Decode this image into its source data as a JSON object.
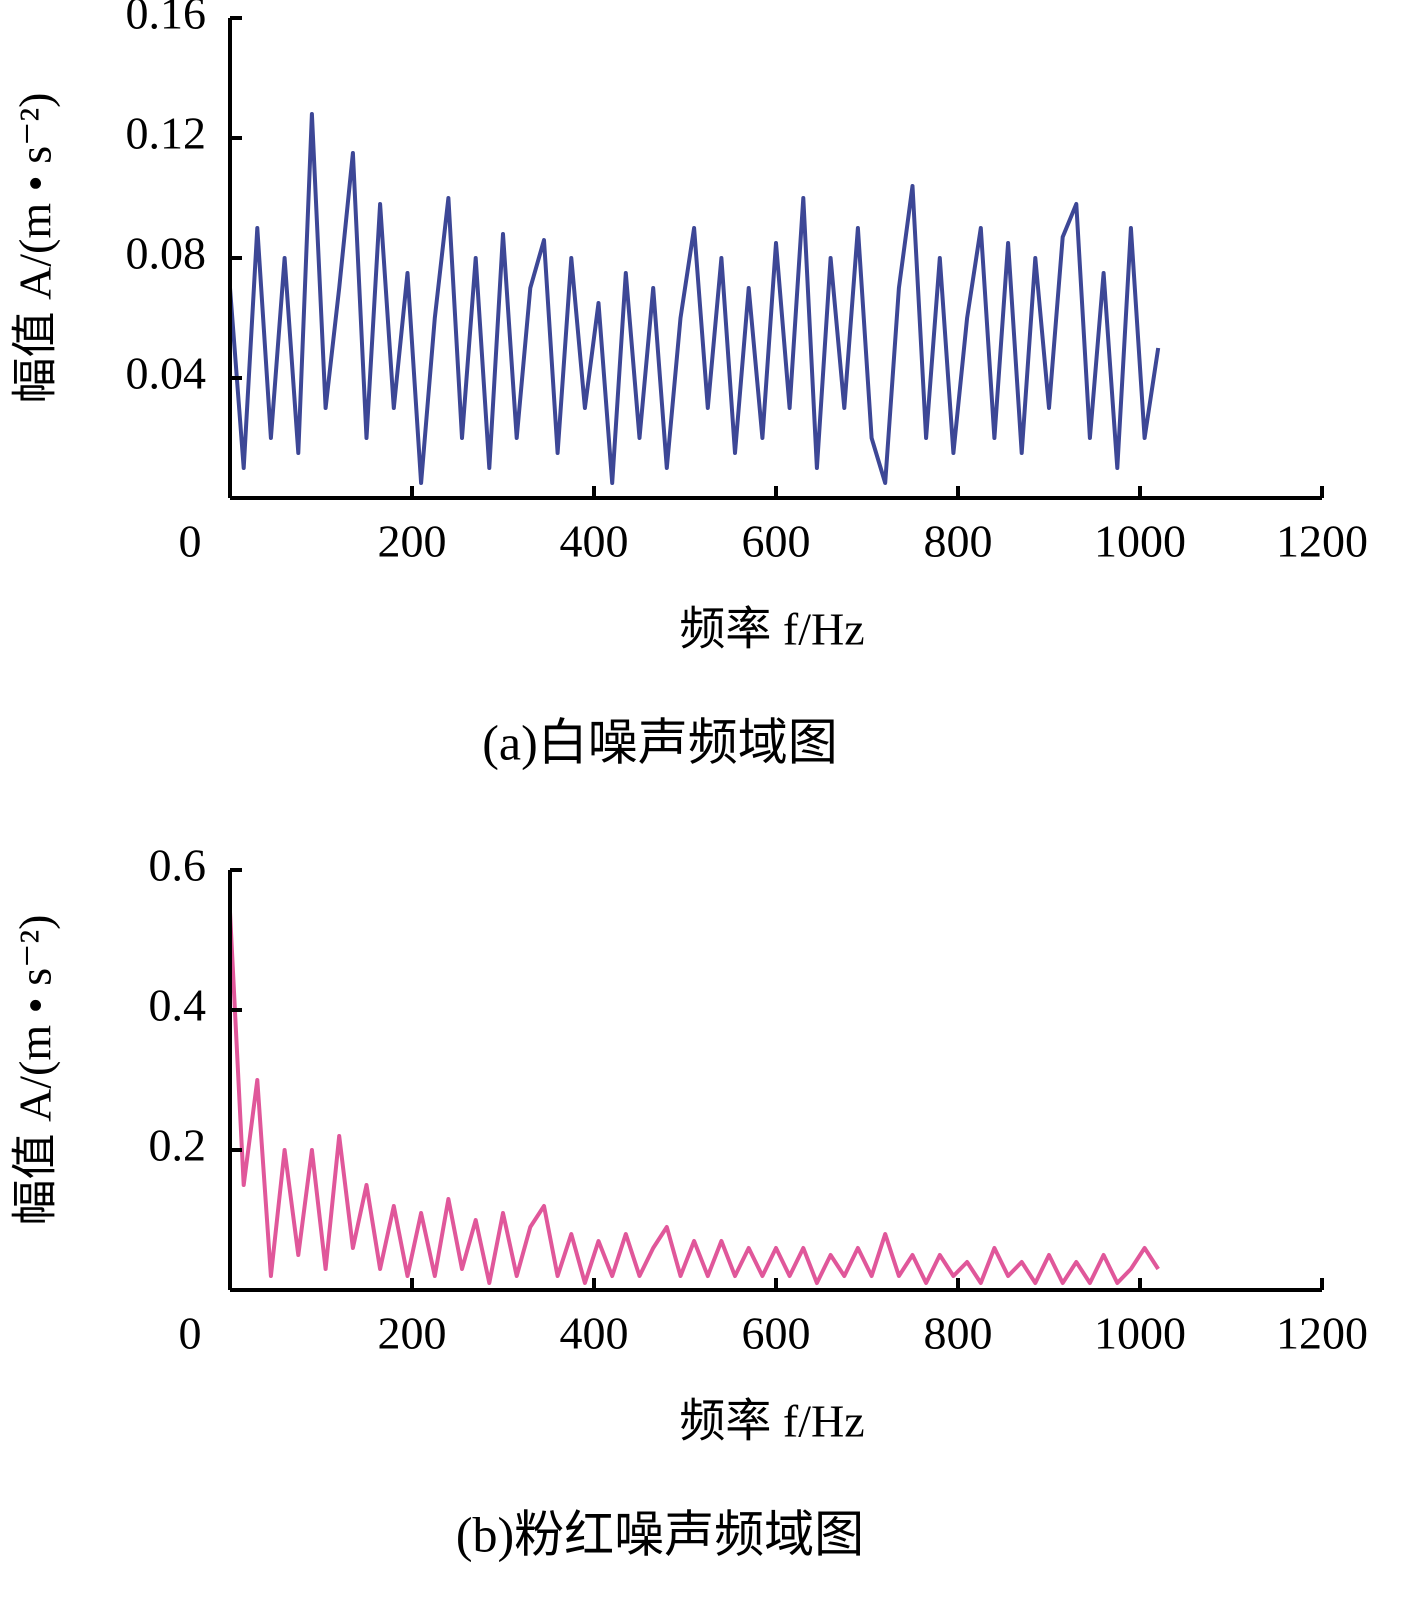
{
  "chart_data": [
    {
      "type": "line",
      "caption": "(a)白噪声频域图",
      "xlabel": "频率 f/Hz",
      "ylabel": "幅值 A/(m • s⁻²)",
      "xlim": [
        0,
        1200
      ],
      "xticks": [
        0,
        200,
        400,
        600,
        800,
        1000,
        1200
      ],
      "ylim": [
        0,
        0.16
      ],
      "yticks": [
        0.04,
        0.08,
        0.12,
        0.16
      ],
      "x": [
        0,
        15,
        30,
        45,
        60,
        75,
        90,
        105,
        120,
        135,
        150,
        165,
        180,
        195,
        210,
        225,
        240,
        255,
        270,
        285,
        300,
        315,
        330,
        345,
        360,
        375,
        390,
        405,
        420,
        435,
        450,
        465,
        480,
        495,
        510,
        525,
        540,
        555,
        570,
        585,
        600,
        615,
        630,
        645,
        660,
        675,
        690,
        705,
        720,
        735,
        750,
        765,
        780,
        795,
        810,
        825,
        840,
        855,
        870,
        885,
        900,
        915,
        930,
        945,
        960,
        975,
        990,
        1005,
        1020
      ],
      "series": [
        {
          "name": "白噪声",
          "color": "#3d4796",
          "values": [
            0.07,
            0.01,
            0.09,
            0.02,
            0.08,
            0.015,
            0.128,
            0.03,
            0.07,
            0.115,
            0.02,
            0.098,
            0.03,
            0.075,
            0.005,
            0.06,
            0.1,
            0.02,
            0.08,
            0.01,
            0.088,
            0.02,
            0.07,
            0.086,
            0.015,
            0.08,
            0.03,
            0.065,
            0.005,
            0.075,
            0.02,
            0.07,
            0.01,
            0.06,
            0.09,
            0.03,
            0.08,
            0.015,
            0.07,
            0.02,
            0.085,
            0.03,
            0.1,
            0.01,
            0.08,
            0.03,
            0.09,
            0.02,
            0.005,
            0.07,
            0.104,
            0.02,
            0.08,
            0.015,
            0.06,
            0.09,
            0.02,
            0.085,
            0.015,
            0.08,
            0.03,
            0.087,
            0.098,
            0.02,
            0.075,
            0.01,
            0.09,
            0.02,
            0.05
          ]
        }
      ]
    },
    {
      "type": "line",
      "caption": "(b)粉红噪声频域图",
      "xlabel": "频率 f/Hz",
      "ylabel": "幅值 A/(m • s⁻²)",
      "xlim": [
        0,
        1200
      ],
      "xticks": [
        0,
        200,
        400,
        600,
        800,
        1000,
        1200
      ],
      "ylim": [
        0,
        0.6
      ],
      "yticks": [
        0.2,
        0.4,
        0.6
      ],
      "x": [
        0,
        15,
        30,
        45,
        60,
        75,
        90,
        105,
        120,
        135,
        150,
        165,
        180,
        195,
        210,
        225,
        240,
        255,
        270,
        285,
        300,
        315,
        330,
        345,
        360,
        375,
        390,
        405,
        420,
        435,
        450,
        465,
        480,
        495,
        510,
        525,
        540,
        555,
        570,
        585,
        600,
        615,
        630,
        645,
        660,
        675,
        690,
        705,
        720,
        735,
        750,
        765,
        780,
        795,
        810,
        825,
        840,
        855,
        870,
        885,
        900,
        915,
        930,
        945,
        960,
        975,
        990,
        1005,
        1020
      ],
      "series": [
        {
          "name": "粉红噪声",
          "color": "#e0579a",
          "values": [
            0.54,
            0.15,
            0.3,
            0.02,
            0.2,
            0.05,
            0.2,
            0.03,
            0.22,
            0.06,
            0.15,
            0.03,
            0.12,
            0.02,
            0.11,
            0.02,
            0.13,
            0.03,
            0.1,
            0.01,
            0.11,
            0.02,
            0.09,
            0.12,
            0.02,
            0.08,
            0.01,
            0.07,
            0.02,
            0.08,
            0.02,
            0.06,
            0.09,
            0.02,
            0.07,
            0.02,
            0.07,
            0.02,
            0.06,
            0.02,
            0.06,
            0.02,
            0.06,
            0.01,
            0.05,
            0.02,
            0.06,
            0.02,
            0.08,
            0.02,
            0.05,
            0.01,
            0.05,
            0.02,
            0.04,
            0.01,
            0.06,
            0.02,
            0.04,
            0.01,
            0.05,
            0.01,
            0.04,
            0.01,
            0.05,
            0.01,
            0.03,
            0.06,
            0.03
          ]
        }
      ]
    }
  ]
}
